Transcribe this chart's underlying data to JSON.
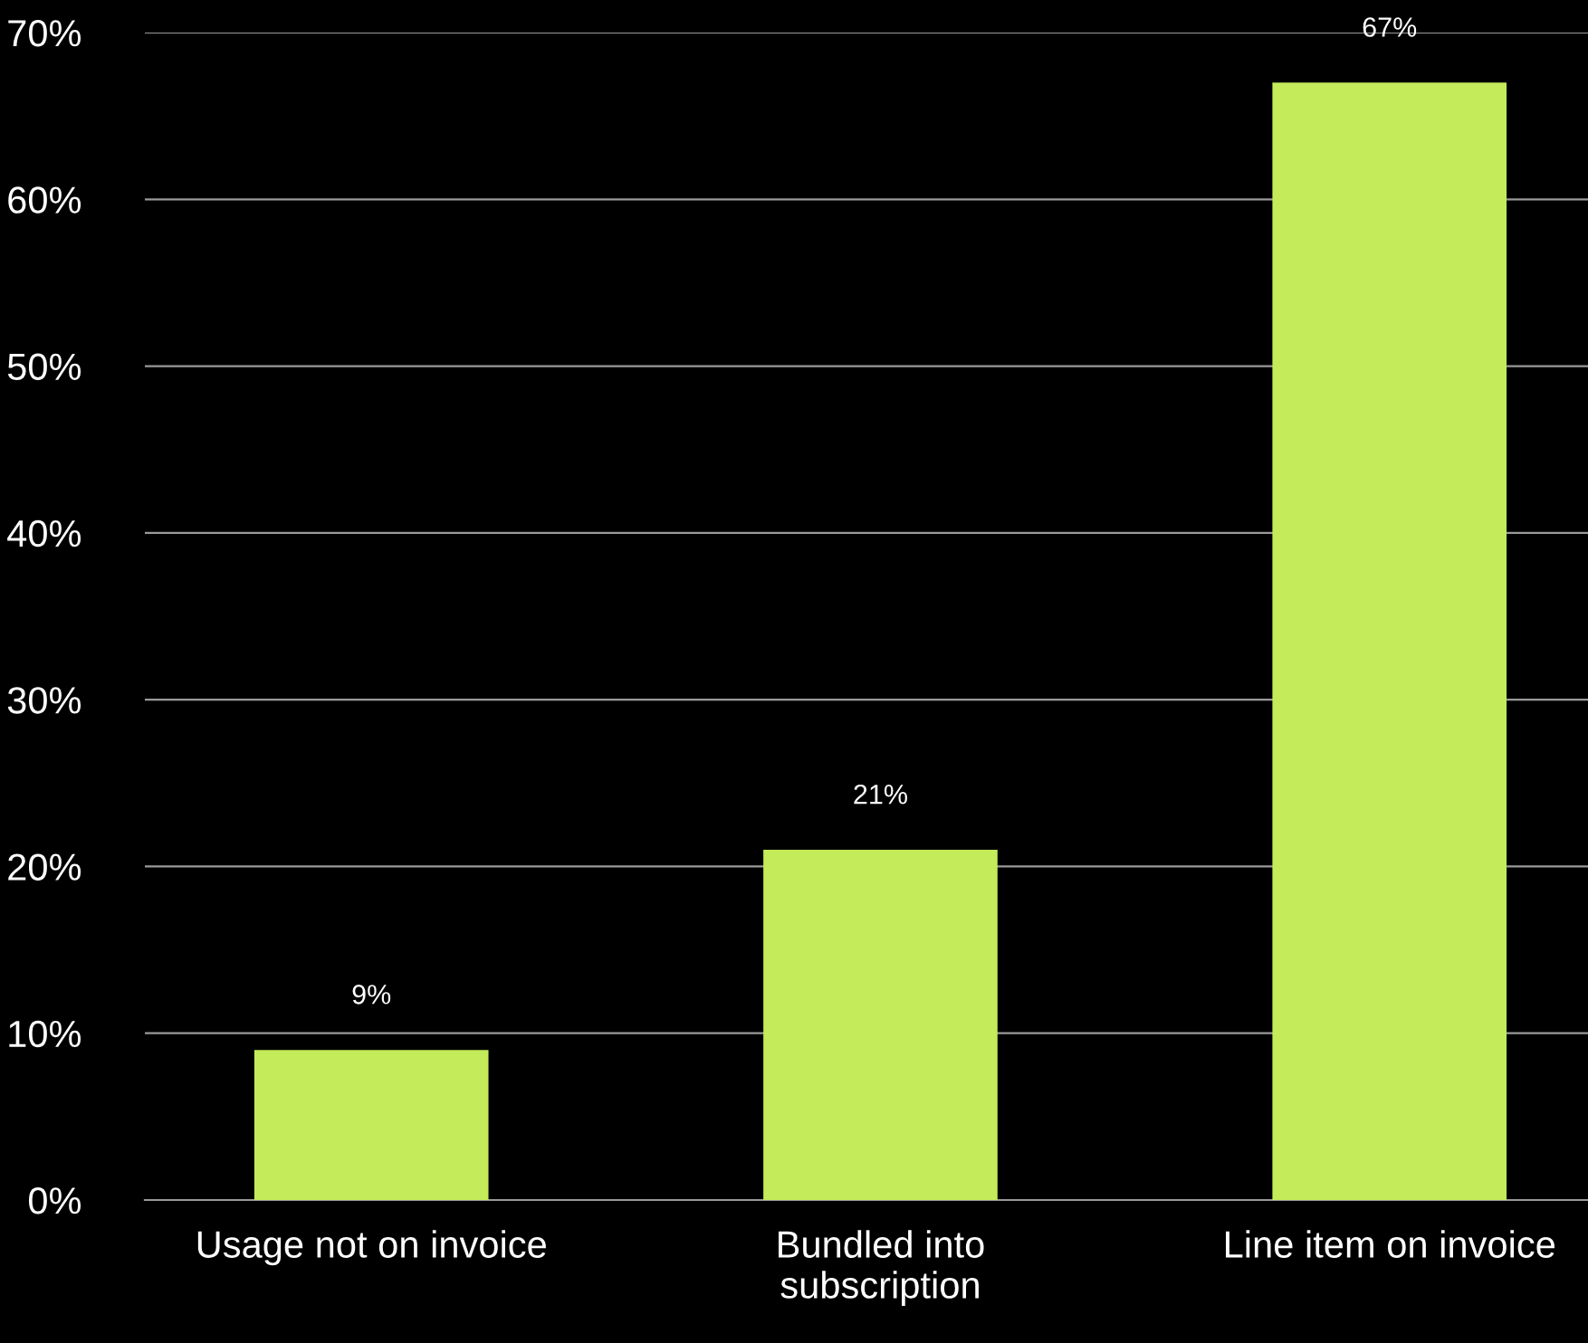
{
  "chart_data": {
    "type": "bar",
    "categories": [
      "Usage not on invoice",
      "Bundled into\nsubscription",
      "Line item on invoice"
    ],
    "values": [
      9,
      21,
      67
    ],
    "color": "#c3eb5a",
    "value_labels": [
      "9%",
      "21%",
      "67%"
    ],
    "ylim": [
      0,
      70
    ],
    "yticks": [
      {
        "value": 0,
        "label": "0%"
      },
      {
        "value": 10,
        "label": "10%"
      },
      {
        "value": 20,
        "label": "20%"
      },
      {
        "value": 30,
        "label": "30%"
      },
      {
        "value": 40,
        "label": "40%"
      },
      {
        "value": 50,
        "label": "50%"
      },
      {
        "value": 60,
        "label": "60%"
      },
      {
        "value": 70,
        "label": "70%"
      }
    ],
    "grid": "y",
    "legend": false
  }
}
